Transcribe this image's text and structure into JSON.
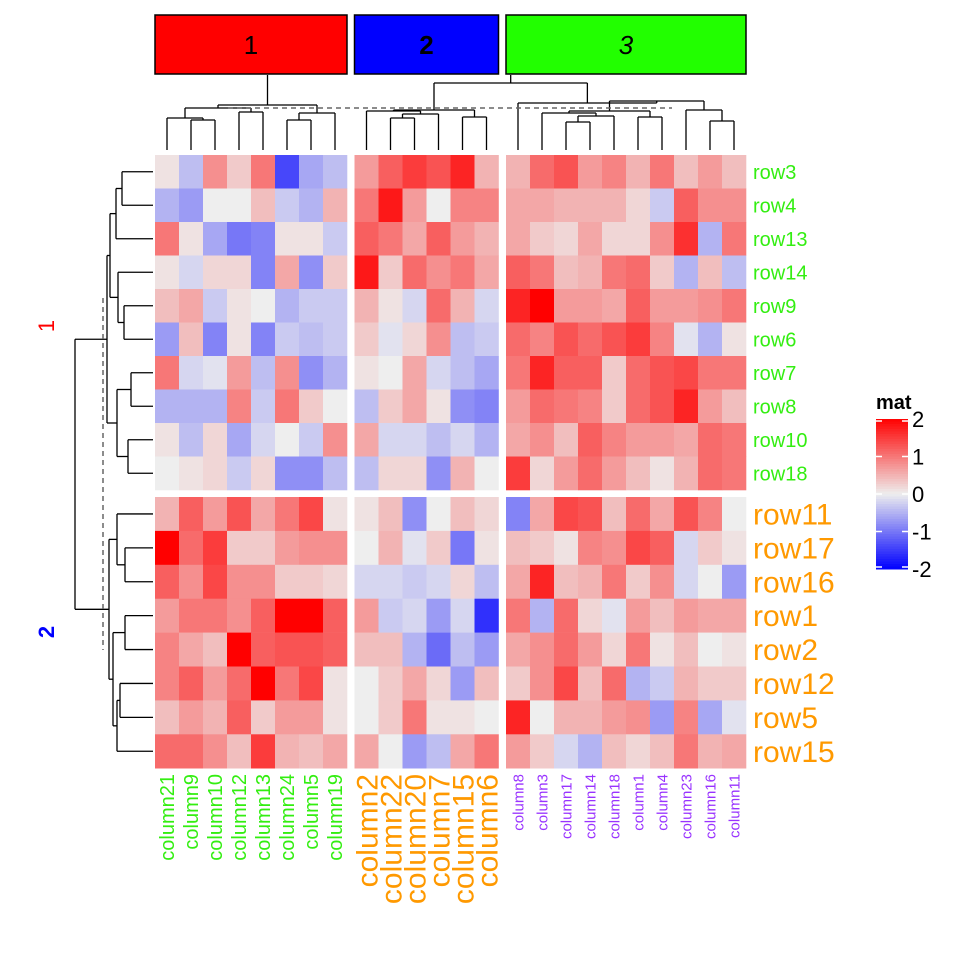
{
  "chart_data": {
    "type": "heatmap",
    "title": "",
    "legend": {
      "title": "mat",
      "ticks": [
        2,
        1,
        0,
        -1,
        -2
      ],
      "range": [
        -2,
        2
      ],
      "colors": {
        "low": "#0000FF",
        "mid": "#EEEEEE",
        "high": "#FF0000"
      },
      "placement": "right"
    },
    "column_groups": [
      {
        "label": "1",
        "color": "#FF0000",
        "label_style": "normal",
        "label_weight": "normal",
        "column_label_color": "#33EE11",
        "columns": [
          "column21",
          "column9",
          "column10",
          "column12",
          "column13",
          "column24",
          "column5",
          "column19"
        ]
      },
      {
        "label": "2",
        "color": "#0000FF",
        "label_style": "normal",
        "label_weight": "bold",
        "column_label_color": "#FF9900",
        "columns": [
          "column2",
          "column22",
          "column20",
          "column7",
          "column15",
          "column6"
        ]
      },
      {
        "label": "3",
        "color": "#22FF00",
        "label_style": "italic",
        "label_weight": "normal",
        "column_label_color": "#9933FF",
        "columns": [
          "column8",
          "column3",
          "column17",
          "column14",
          "column18",
          "column1",
          "column4",
          "column23",
          "column16",
          "column11"
        ]
      }
    ],
    "row_groups": [
      {
        "label": "1",
        "label_color": "#FF0000",
        "row_label_color": "#33EE11",
        "rows": [
          "row3",
          "row4",
          "row13",
          "row14",
          "row9",
          "row6",
          "row7",
          "row8",
          "row10",
          "row18"
        ]
      },
      {
        "label": "2",
        "label_color": "#0000FF",
        "row_label_color": "#FF9900",
        "rows": [
          "row11",
          "row17",
          "row16",
          "row1",
          "row2",
          "row12",
          "row5",
          "row15"
        ]
      }
    ],
    "values": [
      [
        0.1,
        -0.4,
        0.8,
        0.3,
        1.0,
        -1.4,
        -0.6,
        -0.4,
        0.7,
        1.2,
        1.5,
        1.3,
        1.7,
        0.5,
        0.5,
        1.1,
        1.3,
        0.7,
        0.9,
        0.5,
        1.0,
        0.4,
        0.7,
        0.4
      ],
      [
        -0.5,
        -0.7,
        0.0,
        0.0,
        0.4,
        -0.3,
        -0.5,
        0.5,
        1.0,
        1.8,
        0.7,
        0.0,
        0.9,
        0.9,
        0.6,
        0.6,
        0.5,
        0.5,
        0.5,
        0.2,
        -0.3,
        1.2,
        0.8,
        0.8
      ],
      [
        1.0,
        0.1,
        -0.6,
        -1.0,
        -0.9,
        0.1,
        0.1,
        -0.3,
        1.2,
        1.0,
        0.6,
        1.2,
        0.7,
        0.5,
        0.6,
        0.3,
        0.2,
        0.6,
        0.2,
        0.2,
        0.8,
        1.6,
        -0.5,
        1.0
      ],
      [
        0.1,
        -0.2,
        0.2,
        0.2,
        -0.9,
        0.6,
        -0.8,
        0.3,
        1.8,
        0.3,
        1.1,
        0.8,
        1.0,
        0.6,
        1.2,
        1.0,
        0.4,
        0.5,
        1.0,
        1.1,
        0.3,
        -0.5,
        0.4,
        -0.4
      ],
      [
        0.4,
        0.6,
        -0.3,
        0.1,
        0.0,
        -0.5,
        -0.3,
        -0.3,
        0.5,
        0.1,
        -0.2,
        1.1,
        0.5,
        -0.2,
        1.7,
        2.0,
        0.7,
        0.7,
        0.6,
        1.2,
        0.7,
        0.7,
        0.8,
        1.0
      ],
      [
        -0.7,
        0.4,
        -0.9,
        0.1,
        -0.9,
        -0.3,
        -0.4,
        -0.3,
        0.3,
        -0.1,
        0.2,
        0.8,
        -0.4,
        -0.3,
        1.1,
        0.9,
        1.3,
        1.1,
        1.3,
        1.5,
        0.9,
        -0.1,
        -0.5,
        0.1
      ],
      [
        1.0,
        -0.2,
        -0.1,
        0.7,
        -0.4,
        0.8,
        -0.8,
        -0.5,
        0.1,
        0.0,
        0.6,
        -0.2,
        -0.4,
        -0.6,
        1.0,
        1.7,
        1.2,
        1.2,
        0.3,
        1.1,
        1.3,
        1.4,
        1.0,
        1.0
      ],
      [
        -0.5,
        -0.5,
        -0.5,
        0.9,
        -0.3,
        1.0,
        0.3,
        0.0,
        -0.4,
        0.3,
        0.6,
        0.1,
        -0.8,
        -0.9,
        0.7,
        1.1,
        1.0,
        0.9,
        0.3,
        1.1,
        1.3,
        1.7,
        0.7,
        0.4
      ],
      [
        0.1,
        -0.4,
        0.2,
        -0.6,
        -0.2,
        0.0,
        -0.3,
        0.8,
        0.6,
        -0.2,
        -0.2,
        -0.4,
        -0.2,
        -0.5,
        0.6,
        0.8,
        0.4,
        1.2,
        0.9,
        0.7,
        0.7,
        0.6,
        1.1,
        1.0
      ],
      [
        0.0,
        0.1,
        0.2,
        -0.3,
        0.2,
        -0.8,
        -0.8,
        -0.4,
        -0.4,
        0.2,
        0.2,
        -0.8,
        0.5,
        0.0,
        1.5,
        0.2,
        0.7,
        1.1,
        0.7,
        0.4,
        0.1,
        0.5,
        1.1,
        1.0
      ],
      [
        0.5,
        1.2,
        0.7,
        1.3,
        0.6,
        1.0,
        1.4,
        0.1,
        0.1,
        0.4,
        -0.8,
        0.0,
        0.4,
        0.2,
        -0.9,
        0.6,
        1.4,
        1.3,
        0.4,
        1.1,
        0.6,
        1.3,
        0.9,
        0.0
      ],
      [
        2.0,
        1.1,
        1.5,
        0.3,
        0.3,
        0.7,
        0.8,
        0.8,
        0.0,
        0.5,
        -0.1,
        0.3,
        -1.0,
        0.1,
        0.4,
        0.3,
        0.1,
        0.9,
        0.8,
        1.4,
        1.2,
        -0.2,
        0.3,
        0.1
      ],
      [
        1.2,
        0.8,
        1.4,
        0.8,
        0.8,
        0.3,
        0.3,
        0.2,
        -0.2,
        -0.2,
        -0.3,
        -0.2,
        0.2,
        -0.4,
        0.6,
        1.7,
        0.4,
        0.5,
        1.0,
        0.3,
        0.8,
        -0.2,
        0.0,
        -0.7
      ],
      [
        0.7,
        1.0,
        1.0,
        0.8,
        1.2,
        2.0,
        2.0,
        1.2,
        0.7,
        -0.3,
        -0.2,
        -0.7,
        -0.2,
        -1.6,
        1.0,
        -0.5,
        1.1,
        0.2,
        -0.1,
        0.7,
        0.4,
        0.7,
        0.6,
        0.6
      ],
      [
        0.9,
        0.6,
        0.4,
        2.0,
        1.2,
        1.3,
        1.3,
        1.2,
        0.4,
        0.4,
        -0.5,
        -1.1,
        -0.4,
        -0.7,
        0.6,
        0.8,
        1.1,
        0.7,
        0.2,
        1.0,
        0.1,
        0.4,
        0.0,
        0.1
      ],
      [
        0.9,
        1.2,
        0.7,
        1.1,
        2.0,
        1.0,
        1.4,
        0.1,
        0.0,
        0.3,
        0.6,
        0.2,
        -0.7,
        0.4,
        0.3,
        0.8,
        1.4,
        0.4,
        1.1,
        -0.5,
        -0.3,
        0.5,
        0.3,
        0.3
      ],
      [
        0.4,
        0.7,
        0.5,
        1.2,
        0.3,
        0.7,
        0.7,
        0.1,
        0.0,
        0.3,
        1.0,
        0.1,
        0.1,
        0.0,
        1.7,
        0.0,
        0.5,
        0.5,
        0.7,
        0.8,
        -0.7,
        0.9,
        -0.6,
        -0.1
      ],
      [
        1.1,
        1.1,
        0.8,
        0.4,
        1.5,
        0.5,
        0.4,
        0.6,
        0.6,
        0.0,
        -0.7,
        -0.4,
        0.6,
        1.0,
        0.7,
        0.3,
        -0.2,
        -0.5,
        0.4,
        0.2,
        0.4,
        1.0,
        0.5,
        0.6
      ]
    ]
  }
}
